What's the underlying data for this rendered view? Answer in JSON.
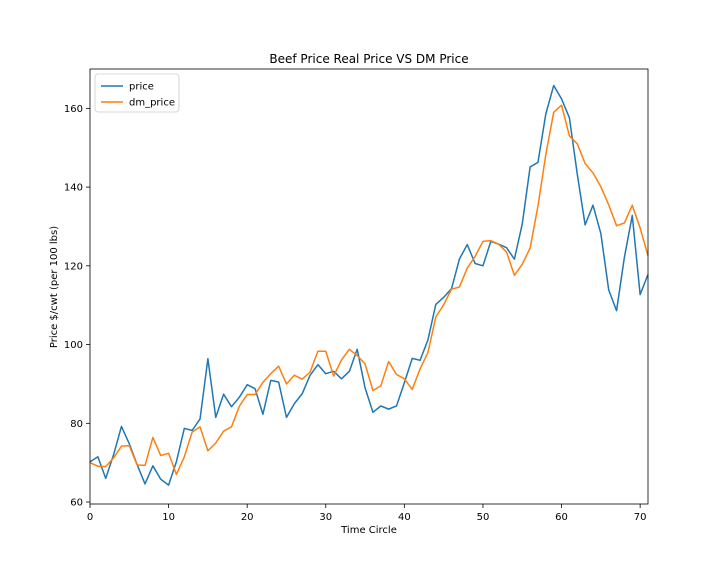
{
  "chart_data": {
    "type": "line",
    "title": "Beef Price Real Price VS DM Price",
    "xlabel": "Time Circle",
    "ylabel": "Price $/cwt (per 100 lbs)",
    "xlim": [
      0,
      71
    ],
    "ylim": [
      59.5,
      170
    ],
    "xticks": [
      0,
      10,
      20,
      30,
      40,
      50,
      60,
      70
    ],
    "yticks": [
      60,
      80,
      100,
      120,
      140,
      160
    ],
    "grid": false,
    "legend_position": "top-left",
    "x": [
      0,
      1,
      2,
      3,
      4,
      5,
      6,
      7,
      8,
      9,
      10,
      11,
      12,
      13,
      14,
      15,
      16,
      17,
      18,
      19,
      20,
      21,
      22,
      23,
      24,
      25,
      26,
      27,
      28,
      29,
      30,
      31,
      32,
      33,
      34,
      35,
      36,
      37,
      38,
      39,
      40,
      41,
      42,
      43,
      44,
      45,
      46,
      47,
      48,
      49,
      50,
      51,
      52,
      53,
      54,
      55,
      56,
      57,
      58,
      59,
      60,
      61,
      62,
      63,
      64,
      65,
      66,
      67,
      68,
      69,
      70,
      71
    ],
    "series": [
      {
        "name": "price",
        "color": "#1f77b4",
        "values": [
          70.2,
          71.5,
          66.0,
          72.0,
          79.2,
          74.8,
          69.5,
          64.6,
          69.2,
          65.8,
          64.3,
          70.3,
          78.7,
          78.2,
          81.1,
          96.4,
          81.5,
          87.4,
          84.2,
          86.6,
          89.8,
          88.8,
          82.3,
          90.9,
          90.5,
          81.5,
          85.0,
          87.5,
          92.2,
          94.9,
          92.6,
          93.2,
          91.3,
          93.2,
          98.8,
          89.0,
          82.8,
          84.4,
          83.6,
          84.4,
          90.3,
          96.5,
          96.0,
          101.2,
          110.2,
          112.0,
          114.2,
          121.7,
          125.4,
          120.6,
          120.0,
          126.2,
          125.5,
          124.6,
          121.7,
          130.6,
          145.1,
          146.3,
          158.6,
          165.8,
          162.4,
          157.6,
          143.3,
          130.4,
          135.4,
          128.2,
          113.9,
          108.6,
          122.2,
          132.8,
          112.7,
          117.8
        ]
      },
      {
        "name": "dm_price",
        "color": "#ff7f0e",
        "values": [
          70.0,
          69.1,
          69.0,
          71.2,
          74.2,
          74.3,
          69.4,
          69.3,
          76.4,
          71.8,
          72.4,
          67.0,
          71.5,
          77.8,
          79.1,
          73.0,
          75.0,
          78.0,
          79.1,
          84.3,
          87.3,
          87.3,
          90.4,
          92.6,
          94.5,
          90.0,
          92.2,
          91.2,
          93.0,
          98.3,
          98.3,
          92.0,
          96.1,
          98.8,
          97.2,
          95.1,
          88.3,
          89.5,
          95.7,
          92.4,
          91.3,
          88.6,
          93.8,
          98.0,
          107.0,
          110.1,
          114.1,
          114.6,
          119.4,
          122.4,
          126.2,
          126.4,
          125.5,
          123.5,
          117.6,
          120.4,
          124.5,
          135.2,
          148.3,
          159.0,
          160.8,
          153.0,
          151.0,
          146.0,
          143.6,
          140.1,
          135.5,
          130.2,
          130.9,
          135.4,
          129.6,
          122.6
        ]
      }
    ]
  }
}
